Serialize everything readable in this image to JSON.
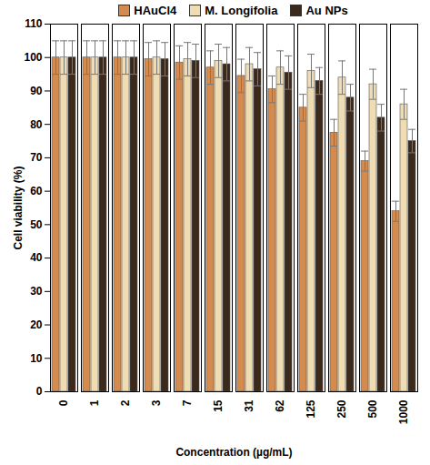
{
  "chart_data": {
    "type": "bar",
    "x_label": "Concentration (µg/mL)",
    "y_label": "Cell viability (%)",
    "categories": [
      "0",
      "1",
      "2",
      "3",
      "7",
      "15",
      "31",
      "62",
      "125",
      "250",
      "500",
      "1000"
    ],
    "series": [
      {
        "name": "HAuCl4",
        "color": "#d58a4e",
        "values": [
          100,
          100,
          100,
          99.5,
          98.5,
          97,
          94.5,
          90.5,
          85,
          77.5,
          69,
          54
        ],
        "errors": [
          5,
          5,
          5,
          5,
          5,
          5,
          5,
          4,
          4,
          4,
          3,
          3
        ]
      },
      {
        "name": "M. Longifolia",
        "color": "#f0dcb2",
        "values": [
          100,
          100,
          100,
          100,
          99.5,
          99,
          98,
          97,
          96,
          94,
          92,
          86
        ],
        "errors": [
          5,
          5,
          5,
          5,
          5,
          5,
          5,
          5,
          5,
          5,
          4.5,
          4.5
        ]
      },
      {
        "name": "Au NPs",
        "color": "#3b2a1c",
        "values": [
          100,
          100,
          100,
          99.5,
          99,
          98,
          96.5,
          95.5,
          93,
          88,
          82,
          75
        ],
        "errors": [
          5,
          5,
          5,
          5,
          5,
          5,
          5,
          5,
          4,
          4,
          4,
          3.5
        ]
      }
    ],
    "ylim": [
      0,
      110
    ],
    "yticks": [
      0,
      10,
      20,
      30,
      40,
      50,
      60,
      70,
      80,
      90,
      100,
      110
    ],
    "grid": false,
    "legend": "top"
  }
}
